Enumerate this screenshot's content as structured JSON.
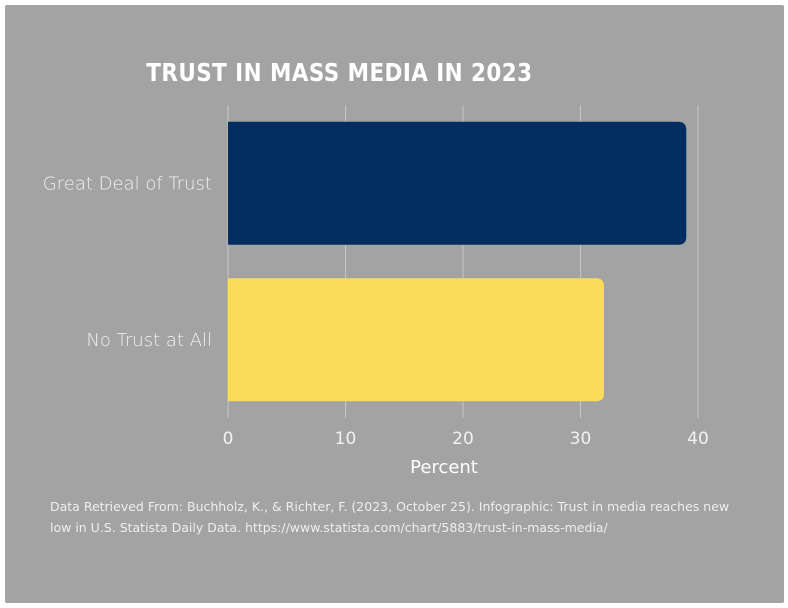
{
  "chart_data": {
    "type": "bar",
    "orientation": "horizontal",
    "title": "TRUST IN MASS MEDIA IN 2023",
    "categories": [
      "Great Deal of Trust",
      "No Trust at All"
    ],
    "values": [
      39,
      32
    ],
    "colors": [
      "#012d61",
      "#fcda5a"
    ],
    "xlabel": "Percent",
    "ylabel": "",
    "xlim": [
      0,
      40
    ],
    "xticks": [
      "0",
      "10",
      "20",
      "30",
      "40"
    ],
    "grid": true
  },
  "source_note": "Data Retrieved From: Buchholz, K., & Richter, F. (2023, October 25). Infographic: Trust in media reaches new low in U.S. Statista Daily Data. https://www.statista.com/chart/5883/trust-in-mass-media/",
  "colors": {
    "background": "#a3a3a3",
    "gridline": "#c6c6c6",
    "text": "#ffffff"
  }
}
